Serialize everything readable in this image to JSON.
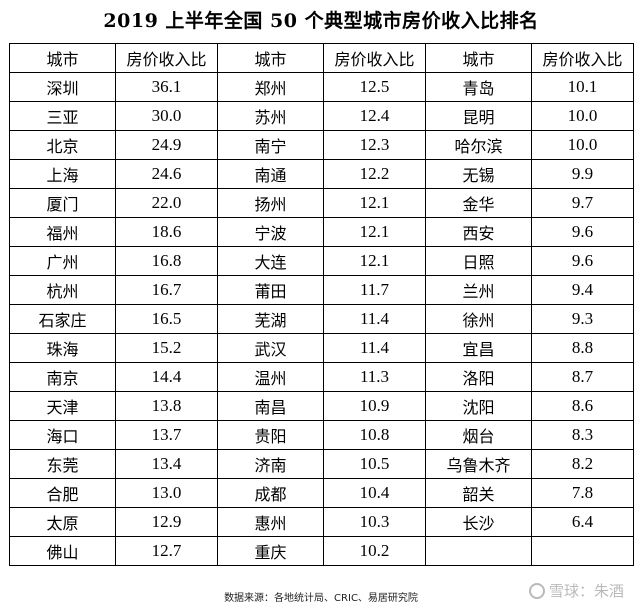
{
  "title": "2019 上半年全国 50 个典型城市房价收入比排名",
  "headers": {
    "city": "城市",
    "ratio": "房价收入比"
  },
  "rows": [
    [
      [
        "深圳",
        "36.1"
      ],
      [
        "郑州",
        "12.5"
      ],
      [
        "青岛",
        "10.1"
      ]
    ],
    [
      [
        "三亚",
        "30.0"
      ],
      [
        "苏州",
        "12.4"
      ],
      [
        "昆明",
        "10.0"
      ]
    ],
    [
      [
        "北京",
        "24.9"
      ],
      [
        "南宁",
        "12.3"
      ],
      [
        "哈尔滨",
        "10.0"
      ]
    ],
    [
      [
        "上海",
        "24.6"
      ],
      [
        "南通",
        "12.2"
      ],
      [
        "无锡",
        "9.9"
      ]
    ],
    [
      [
        "厦门",
        "22.0"
      ],
      [
        "扬州",
        "12.1"
      ],
      [
        "金华",
        "9.7"
      ]
    ],
    [
      [
        "福州",
        "18.6"
      ],
      [
        "宁波",
        "12.1"
      ],
      [
        "西安",
        "9.6"
      ]
    ],
    [
      [
        "广州",
        "16.8"
      ],
      [
        "大连",
        "12.1"
      ],
      [
        "日照",
        "9.6"
      ]
    ],
    [
      [
        "杭州",
        "16.7"
      ],
      [
        "莆田",
        "11.7"
      ],
      [
        "兰州",
        "9.4"
      ]
    ],
    [
      [
        "石家庄",
        "16.5"
      ],
      [
        "芜湖",
        "11.4"
      ],
      [
        "徐州",
        "9.3"
      ]
    ],
    [
      [
        "珠海",
        "15.2"
      ],
      [
        "武汉",
        "11.4"
      ],
      [
        "宜昌",
        "8.8"
      ]
    ],
    [
      [
        "南京",
        "14.4"
      ],
      [
        "温州",
        "11.3"
      ],
      [
        "洛阳",
        "8.7"
      ]
    ],
    [
      [
        "天津",
        "13.8"
      ],
      [
        "南昌",
        "10.9"
      ],
      [
        "沈阳",
        "8.6"
      ]
    ],
    [
      [
        "海口",
        "13.7"
      ],
      [
        "贵阳",
        "10.8"
      ],
      [
        "烟台",
        "8.3"
      ]
    ],
    [
      [
        "东莞",
        "13.4"
      ],
      [
        "济南",
        "10.5"
      ],
      [
        "乌鲁木齐",
        "8.2"
      ]
    ],
    [
      [
        "合肥",
        "13.0"
      ],
      [
        "成都",
        "10.4"
      ],
      [
        "韶关",
        "7.8"
      ]
    ],
    [
      [
        "太原",
        "12.9"
      ],
      [
        "惠州",
        "10.3"
      ],
      [
        "长沙",
        "6.4"
      ]
    ],
    [
      [
        "佛山",
        "12.7"
      ],
      [
        "重庆",
        "10.2"
      ],
      [
        "",
        ""
      ]
    ]
  ],
  "source": "数据来源：各地统计局、CRIC、易居研究院",
  "watermark": "雪球：朱酒"
}
